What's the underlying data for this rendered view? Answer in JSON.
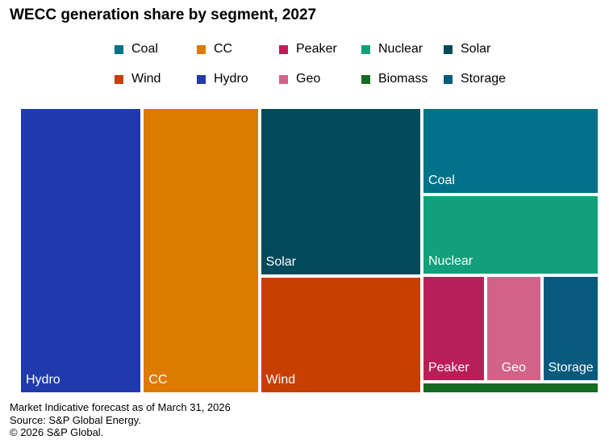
{
  "title": "WECC generation share by segment, 2027",
  "chart_data": {
    "type": "treemap",
    "title": "WECC generation share by segment, 2027",
    "legend": [
      {
        "name": "Coal",
        "color": "#007289"
      },
      {
        "name": "CC",
        "color": "#dd7a00"
      },
      {
        "name": "Peaker",
        "color": "#b81e57"
      },
      {
        "name": "Nuclear",
        "color": "#11a079"
      },
      {
        "name": "Solar",
        "color": "#004a5b"
      },
      {
        "name": "Wind",
        "color": "#c73f00"
      },
      {
        "name": "Hydro",
        "color": "#1f3aad"
      },
      {
        "name": "Geo",
        "color": "#d16388"
      },
      {
        "name": "Biomass",
        "color": "#146b22"
      },
      {
        "name": "Storage",
        "color": "#075a7d"
      }
    ],
    "segments": [
      {
        "name": "Hydro",
        "label": "Hydro",
        "share": 21.2,
        "color": "#1f3aad"
      },
      {
        "name": "CC",
        "label": "CC",
        "share": 20.2,
        "color": "#dd7a00"
      },
      {
        "name": "Solar",
        "label": "Solar",
        "share": 16.5,
        "color": "#004a5b"
      },
      {
        "name": "Wind",
        "label": "Wind",
        "share": 11.5,
        "color": "#c73f00"
      },
      {
        "name": "Coal",
        "label": "Coal",
        "share": 9.3,
        "color": "#007289"
      },
      {
        "name": "Nuclear",
        "label": "Nuclear",
        "share": 8.6,
        "color": "#11a079"
      },
      {
        "name": "Peaker",
        "label": "Peaker",
        "share": 4.1,
        "color": "#b81e57"
      },
      {
        "name": "Geo",
        "label": "Geo",
        "share": 3.6,
        "color": "#d16388"
      },
      {
        "name": "Storage",
        "label": "Storage",
        "share": 3.7,
        "color": "#075a7d"
      },
      {
        "name": "Biomass",
        "label": "",
        "share": 1.3,
        "color": "#146b22"
      }
    ]
  },
  "footer": {
    "line1": "Market Indicative forecast as of March 31, 2026",
    "line2": "Source: S&P Global Energy.",
    "line3": "© 2026 S&P Global."
  }
}
